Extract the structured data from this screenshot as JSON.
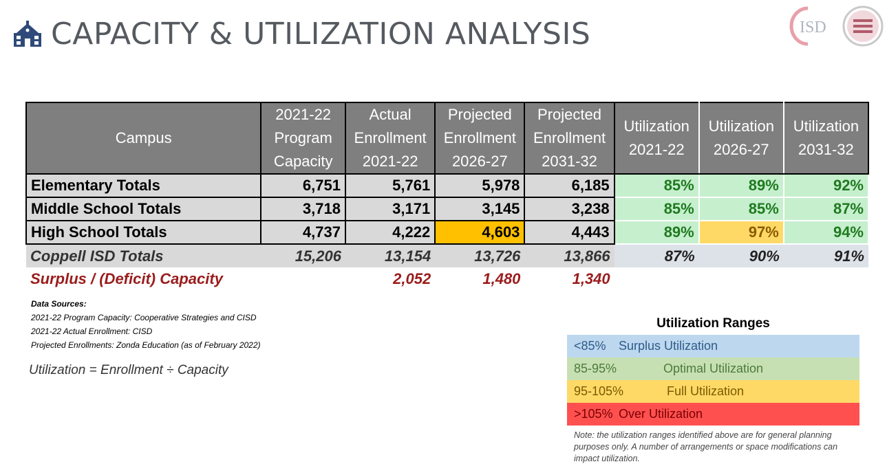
{
  "header": {
    "title": "CAPACITY & UTILIZATION ANALYSIS",
    "icon": "school-icon",
    "logo_text": "ISD"
  },
  "table": {
    "headers": [
      "Campus",
      "2021-22 Program Capacity",
      "Actual Enrollment 2021-22",
      "Projected Enrollment 2026-27",
      "Projected Enrollment 2031-32",
      "Utilization 2021-22",
      "Utilization 2026-27",
      "Utilization 2031-32"
    ],
    "header_lines": [
      [
        "Campus"
      ],
      [
        "2021-22",
        "Program",
        "Capacity"
      ],
      [
        "Actual",
        "Enrollment",
        "2021-22"
      ],
      [
        "Projected",
        "Enrollment",
        "2026-27"
      ],
      [
        "Projected",
        "Enrollment",
        "2031-32"
      ],
      [
        "Utilization",
        "2021-22"
      ],
      [
        "Utilization",
        "2026-27"
      ],
      [
        "Utilization",
        "2031-32"
      ]
    ],
    "rows": [
      {
        "campus": "Elementary Totals",
        "capacity": "6,751",
        "actual": "5,761",
        "proj2027": "5,978",
        "proj2032": "6,185",
        "util2022": "85%",
        "util2027": "89%",
        "util2032": "92%"
      },
      {
        "campus": "Middle School Totals",
        "capacity": "3,718",
        "actual": "3,171",
        "proj2027": "3,145",
        "proj2032": "3,238",
        "util2022": "85%",
        "util2027": "85%",
        "util2032": "87%"
      },
      {
        "campus": "High School Totals",
        "capacity": "4,737",
        "actual": "4,222",
        "proj2027": "4,603",
        "proj2032": "4,443",
        "util2022": "89%",
        "util2027": "97%",
        "util2032": "94%"
      }
    ],
    "total": {
      "campus": "Coppell ISD Totals",
      "capacity": "15,206",
      "actual": "13,154",
      "proj2027": "13,726",
      "proj2032": "13,866",
      "util2022": "87%",
      "util2027": "90%",
      "util2032": "91%"
    },
    "surplus": {
      "label": "Surplus / (Deficit) Capacity",
      "actual": "2,052",
      "proj2027": "1,480",
      "proj2032": "1,340"
    }
  },
  "sources": {
    "heading": "Data Sources:",
    "lines": [
      "2021-22 Program Capacity:  Cooperative Strategies and CISD",
      "2021-22 Actual Enrollment: CISD",
      "Projected Enrollments:  Zonda Education (as of February 2022)"
    ]
  },
  "formula": "Utilization = Enrollment ÷ Capacity",
  "ranges": {
    "title": "Utilization Ranges",
    "items": [
      {
        "range": "<85%",
        "label": "Surplus Utilization",
        "color": "#bdd7ee"
      },
      {
        "range": "85-95%",
        "label": "Optimal Utilization",
        "color": "#c6e0b4"
      },
      {
        "range": "95-105%",
        "label": "Full Utilization",
        "color": "#ffd966"
      },
      {
        "range": ">105%",
        "label": "Over Utilization",
        "color": "#ff5050"
      }
    ],
    "note": "Note: the utilization ranges identified above are for general planning purposes only. A number of arrangements or space modifications can impact utilization."
  }
}
